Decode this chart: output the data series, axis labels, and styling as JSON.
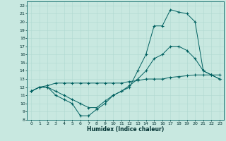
{
  "title": "",
  "xlabel": "Humidex (Indice chaleur)",
  "bg_color": "#c8e8e0",
  "grid_color": "#b0d8d0",
  "line_color": "#006060",
  "xlim": [
    -0.5,
    23.5
  ],
  "ylim": [
    8,
    22.5
  ],
  "xticks": [
    0,
    1,
    2,
    3,
    4,
    5,
    6,
    7,
    8,
    9,
    10,
    11,
    12,
    13,
    14,
    15,
    16,
    17,
    18,
    19,
    20,
    21,
    22,
    23
  ],
  "yticks": [
    8,
    9,
    10,
    11,
    12,
    13,
    14,
    15,
    16,
    17,
    18,
    19,
    20,
    21,
    22
  ],
  "line1_x": [
    0,
    1,
    2,
    3,
    4,
    5,
    6,
    7,
    8,
    9,
    10,
    11,
    12,
    13,
    14,
    15,
    16,
    17,
    18,
    19,
    20,
    21,
    22,
    23
  ],
  "line1_y": [
    11.5,
    12.0,
    12.0,
    11.0,
    10.5,
    10.0,
    8.5,
    8.5,
    9.3,
    10.0,
    11.0,
    11.5,
    12.0,
    14.0,
    16.0,
    19.5,
    19.5,
    21.5,
    21.2,
    21.0,
    20.0,
    14.0,
    13.5,
    13.0
  ],
  "line2_x": [
    0,
    1,
    2,
    3,
    4,
    5,
    6,
    7,
    8,
    9,
    10,
    11,
    12,
    13,
    14,
    15,
    16,
    17,
    18,
    19,
    20,
    21,
    22,
    23
  ],
  "line2_y": [
    11.5,
    12.0,
    12.0,
    11.5,
    11.0,
    10.5,
    10.0,
    9.5,
    9.5,
    10.3,
    11.0,
    11.5,
    12.2,
    13.0,
    14.0,
    15.5,
    16.0,
    17.0,
    17.0,
    16.5,
    15.5,
    14.0,
    13.5,
    13.0
  ],
  "line3_x": [
    0,
    1,
    2,
    3,
    4,
    5,
    6,
    7,
    8,
    9,
    10,
    11,
    12,
    13,
    14,
    15,
    16,
    17,
    18,
    19,
    20,
    21,
    22,
    23
  ],
  "line3_y": [
    11.5,
    12.0,
    12.2,
    12.5,
    12.5,
    12.5,
    12.5,
    12.5,
    12.5,
    12.5,
    12.5,
    12.5,
    12.7,
    12.8,
    13.0,
    13.0,
    13.0,
    13.2,
    13.3,
    13.4,
    13.5,
    13.5,
    13.5,
    13.5
  ],
  "tick_fontsize": 4.5,
  "xlabel_fontsize": 5.5,
  "linewidth": 0.7,
  "markersize": 3.0
}
